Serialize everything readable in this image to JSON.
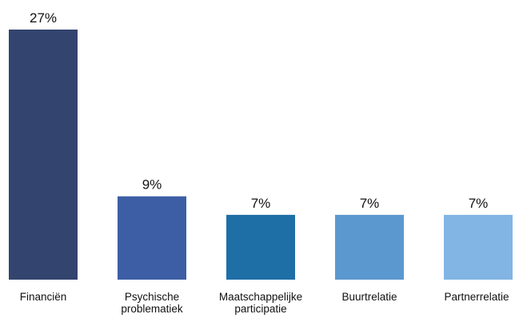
{
  "chart_data": {
    "type": "bar",
    "categories": [
      [
        "Financiën"
      ],
      [
        "Psychische",
        "problematiek"
      ],
      [
        "Maatschappelijke",
        "participatie"
      ],
      [
        "Buurtrelatie"
      ],
      [
        "Partnerrelatie"
      ]
    ],
    "values": [
      27,
      9,
      7,
      7,
      7
    ],
    "value_labels": [
      "27%",
      "9%",
      "7%",
      "7%",
      "7%"
    ],
    "colors": [
      "#33446e",
      "#3d5ea4",
      "#1f6fa7",
      "#5b98cf",
      "#82b5e4"
    ],
    "title": "",
    "xlabel": "",
    "ylabel": "",
    "ylim": [
      0,
      27
    ],
    "grid": false,
    "legend": "none"
  }
}
